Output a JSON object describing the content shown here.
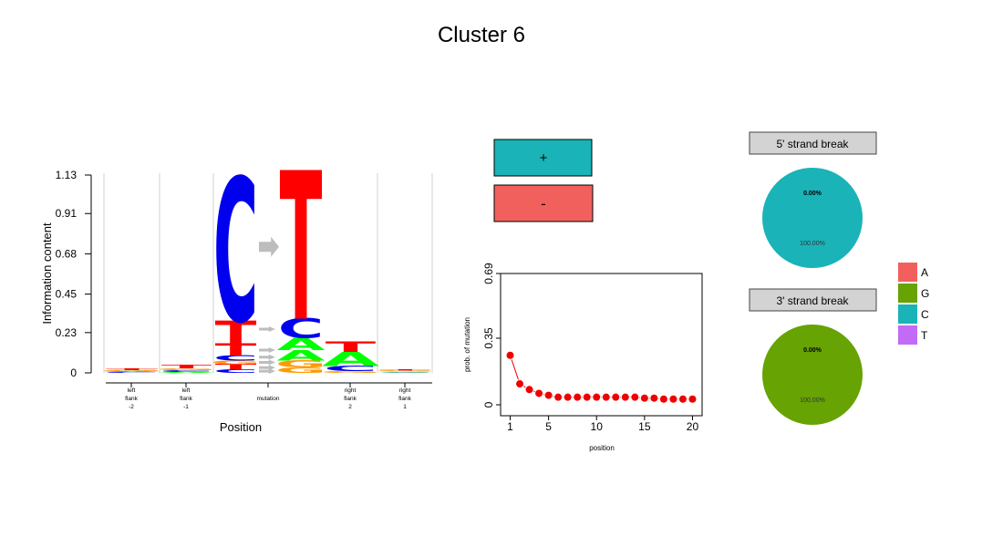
{
  "title": "Cluster 6",
  "colors": {
    "A": "#00ff00",
    "C": "#0000ee",
    "G": "#ff9900",
    "T": "#ff0000",
    "plus_box": "#1ab3b8",
    "minus_box": "#f2605d",
    "pie_5prime": "#1ab3b8",
    "pie_3prime": "#66a303",
    "legend_A": "#f2605d",
    "legend_G": "#66a303",
    "legend_C": "#1ab3b8",
    "legend_T": "#c26bf7",
    "mutation_points": "#ee0000",
    "strip_fill": "#d3d3d3",
    "arrow": "#bdbdbd"
  },
  "strand_boxes": {
    "plus_label": "+",
    "minus_label": "-"
  },
  "chart_data": [
    {
      "type": "sequence-logo",
      "ylabel": "Information content",
      "xlabel": "Position",
      "ylim": [
        0,
        1.13
      ],
      "yticks": [
        "0",
        "0.23",
        "0.45",
        "0.68",
        "0.91",
        "1.13"
      ],
      "yticks_values": [
        0,
        0.23,
        0.45,
        0.68,
        0.91,
        1.13
      ],
      "positions": [
        {
          "label": [
            "left",
            "flank",
            "-2"
          ],
          "stack": [
            [
              "C",
              0.005
            ],
            [
              "A",
              0.005
            ],
            [
              "G",
              0.005
            ],
            [
              "T",
              0.01
            ]
          ]
        },
        {
          "label": [
            "left",
            "flank",
            "-1"
          ],
          "stack": [
            [
              "A",
              0.005
            ],
            [
              "C",
              0.01
            ],
            [
              "G",
              0.01
            ],
            [
              "T",
              0.02
            ]
          ]
        },
        {
          "label": [
            "mutation"
          ],
          "mutation": true,
          "ref_stack": [
            [
              "C",
              0.02
            ],
            [
              "T",
              0.03
            ],
            [
              "G",
              0.02
            ],
            [
              "C",
              0.03
            ],
            [
              "T",
              0.07
            ],
            [
              "T",
              0.13
            ],
            [
              "C",
              0.82
            ]
          ],
          "alt_stack": [
            [
              "G",
              0.03
            ],
            [
              "G",
              0.04
            ],
            [
              "A",
              0.06
            ],
            [
              "A",
              0.07
            ],
            [
              "C",
              0.11
            ],
            [
              "T",
              0.85
            ]
          ],
          "arrows": [
            0.01,
            0.03,
            0.06,
            0.09,
            0.13,
            0.25,
            0.72
          ]
        },
        {
          "label": [
            "right",
            "flank",
            "2"
          ],
          "stack": [
            [
              "G",
              0.01
            ],
            [
              "C",
              0.03
            ],
            [
              "A",
              0.08
            ],
            [
              "T",
              0.06
            ]
          ]
        },
        {
          "label": [
            "right",
            "flank",
            "1"
          ],
          "stack": [
            [
              "A",
              0.003
            ],
            [
              "C",
              0.004
            ],
            [
              "G",
              0.005
            ],
            [
              "T",
              0.008
            ]
          ]
        }
      ]
    },
    {
      "type": "scatter",
      "ylabel": "prob. of mutation",
      "xlabel": "position",
      "xlim": [
        0,
        21
      ],
      "ylim": [
        0,
        0.69
      ],
      "xticks": [
        1,
        5,
        10,
        15,
        20
      ],
      "yticks": [
        "0",
        "0.35",
        "0.69"
      ],
      "yticks_values": [
        0,
        0.35,
        0.69
      ],
      "x": [
        1,
        2,
        3,
        4,
        5,
        6,
        7,
        8,
        9,
        10,
        11,
        12,
        13,
        14,
        15,
        16,
        17,
        18,
        19,
        20
      ],
      "y": [
        0.26,
        0.11,
        0.08,
        0.06,
        0.05,
        0.04,
        0.04,
        0.04,
        0.04,
        0.04,
        0.04,
        0.04,
        0.04,
        0.04,
        0.035,
        0.035,
        0.03,
        0.03,
        0.03,
        0.03
      ]
    },
    {
      "type": "pie",
      "title": "5' strand break",
      "slices": [
        {
          "label": "0.00%",
          "value": 0,
          "category": "A"
        },
        {
          "label": "100.00%",
          "value": 100,
          "category": "C"
        }
      ]
    },
    {
      "type": "pie",
      "title": "3' strand break",
      "slices": [
        {
          "label": "0.00%",
          "value": 0,
          "category": "A"
        },
        {
          "label": "100.00%",
          "value": 100,
          "category": "G"
        }
      ]
    }
  ],
  "legend": {
    "items": [
      "A",
      "G",
      "C",
      "T"
    ]
  }
}
